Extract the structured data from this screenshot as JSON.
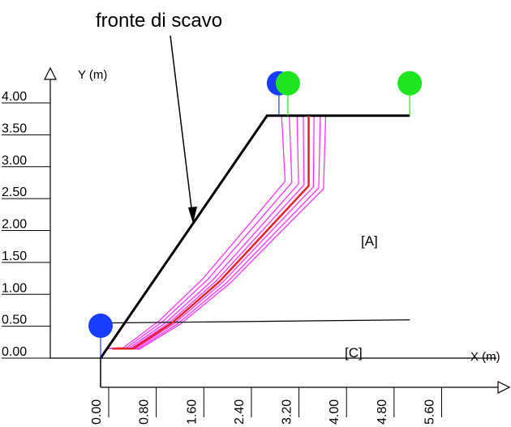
{
  "annotation": {
    "front_label": "fronte di scavo"
  },
  "axes": {
    "y_label": "Y (m)",
    "x_label": "X (m)",
    "y_ticks": [
      "4.00",
      "3.50",
      "3.00",
      "2.50",
      "2.00",
      "1.50",
      "1.00",
      "0.50",
      "0.00"
    ],
    "x_ticks": [
      "0.00",
      "0.80",
      "1.60",
      "2.40",
      "3.20",
      "4.00",
      "4.80",
      "5.60"
    ]
  },
  "regions": {
    "upper": "[A]",
    "lower": "[C]"
  },
  "colors": {
    "slope": "#000000",
    "critical_surface": "#e8202a",
    "trial_surfaces": "#ff33ff",
    "marker_blue": "#1a3cff",
    "marker_green": "#1ee61e"
  },
  "chart_data": {
    "type": "line",
    "ylim": [
      0,
      4.0
    ],
    "xlim": [
      0,
      6.2
    ],
    "ground_profile": {
      "x": [
        0.0,
        2.8,
        5.2
      ],
      "y": [
        0.0,
        3.8,
        3.8
      ]
    },
    "layer_boundary": {
      "x": [
        0.0,
        5.2
      ],
      "y": [
        0.55,
        0.6
      ]
    },
    "critical_surface": {
      "x": [
        0.2,
        0.55,
        1.2,
        2.0,
        2.8,
        3.5,
        3.5
      ],
      "y": [
        0.15,
        0.15,
        0.55,
        1.2,
        2.0,
        2.7,
        3.8
      ]
    },
    "markers": [
      {
        "color": "blue",
        "x": 3.0,
        "y": 3.8
      },
      {
        "color": "green",
        "x": 3.15,
        "y": 3.8
      },
      {
        "color": "green",
        "x": 5.2,
        "y": 3.8
      },
      {
        "color": "blue",
        "x": 0.0,
        "y": 0.0
      }
    ]
  }
}
